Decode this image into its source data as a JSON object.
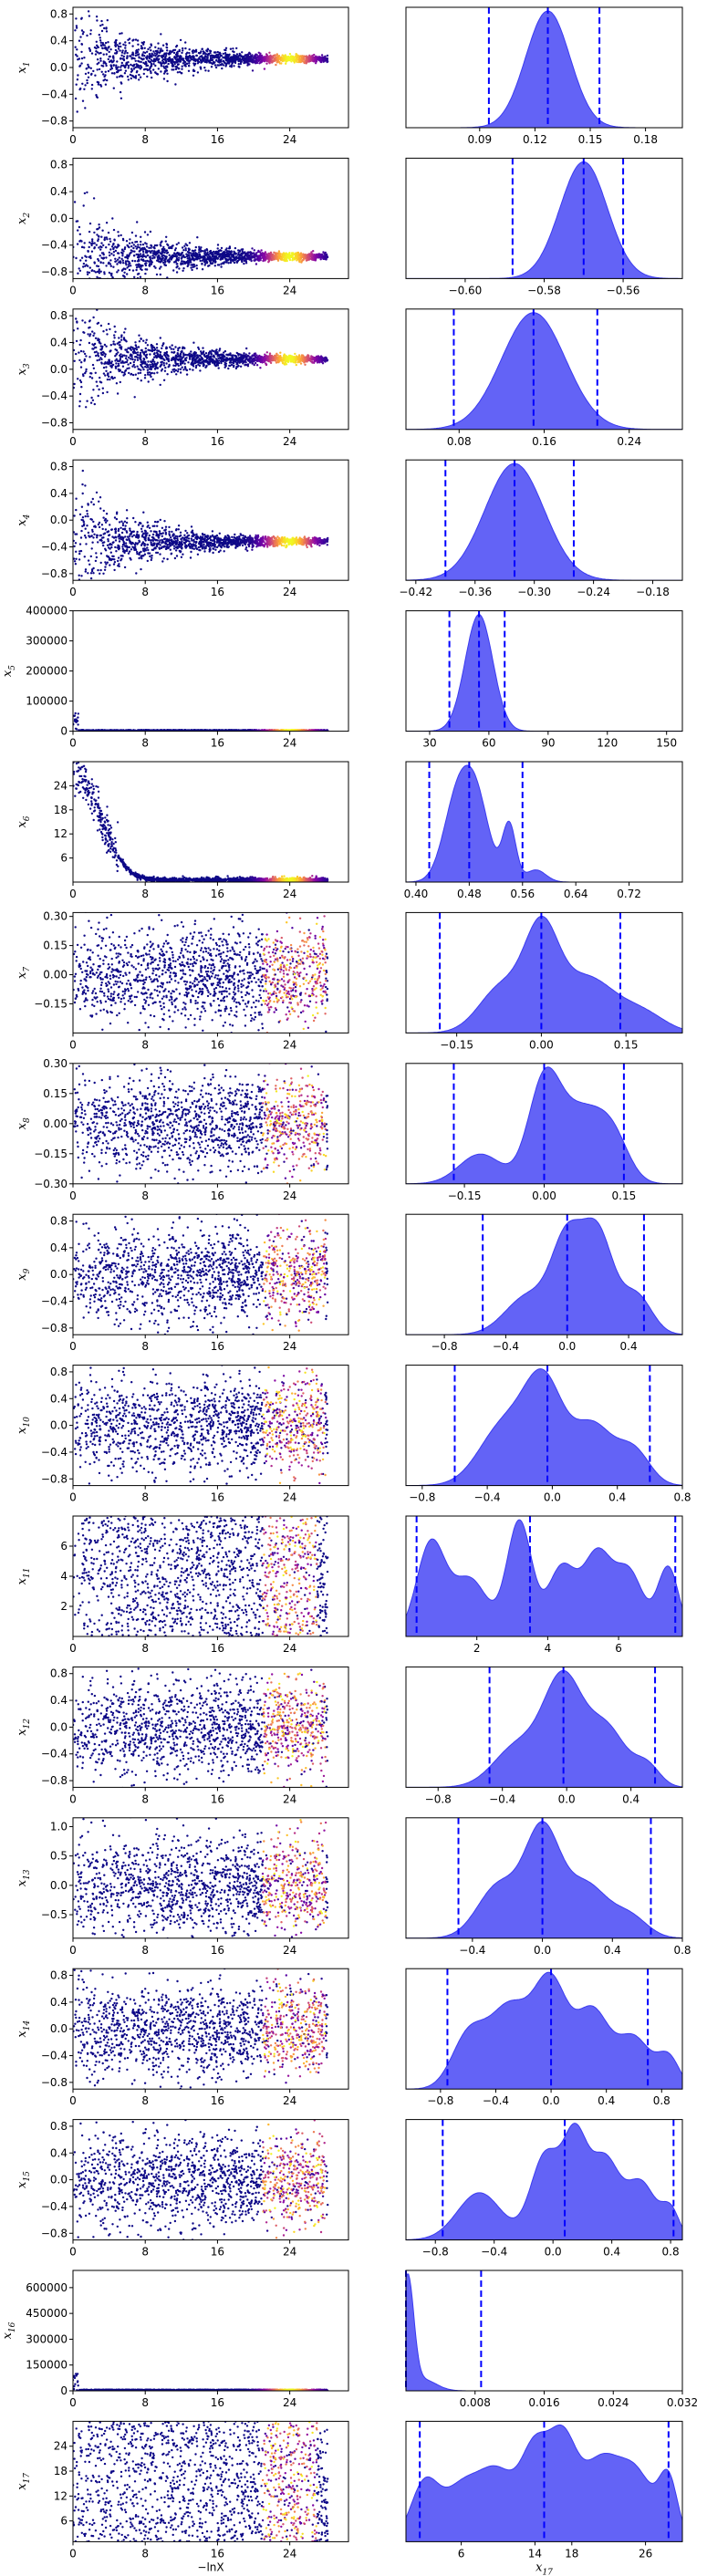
{
  "chart_data": {
    "type": "scatter",
    "description_layout": "17 rows; left column: trace of x_i vs -lnX colored by weight; right column: marginal posterior density with 3 dashed quantile lines",
    "colors": {
      "scatter_low": "#0d0887",
      "scatter_high": "#f0f921",
      "density_fill": "#4848f4",
      "density_edge": "#3b3bf0",
      "quantile_line": "#0000ff"
    },
    "trace_x": {
      "range": [
        0,
        30.5
      ],
      "ticks": [
        0,
        8,
        16,
        24
      ]
    },
    "bottom_xlabels": {
      "trace": "−lnX",
      "last_density": "x",
      "last_density_sub": "17"
    },
    "rows": [
      {
        "label": "x",
        "sub": "1",
        "trace_type": "converge",
        "trace_ylim": [
          -0.9,
          0.9
        ],
        "trace_yticks": [
          -0.8,
          -0.4,
          0.0,
          0.4,
          0.8
        ],
        "trace_yticklabels": [
          "−0.8",
          "−0.4",
          "0.0",
          "0.4",
          "0.8"
        ],
        "final": 0.13,
        "dens_xlim": [
          0.05,
          0.2
        ],
        "dens_xticks": [
          0.09,
          0.12,
          0.15,
          0.18
        ],
        "dens_xticklabels": [
          "0.09",
          "0.12",
          "0.15",
          "0.18"
        ],
        "quantiles": [
          0.095,
          0.127,
          0.155
        ],
        "peaks": [
          [
            0.127,
            0.012,
            1.0
          ]
        ]
      },
      {
        "label": "x",
        "sub": "2",
        "trace_type": "converge",
        "trace_ylim": [
          -0.9,
          0.9
        ],
        "trace_yticks": [
          -0.8,
          -0.4,
          0.0,
          0.4,
          0.8
        ],
        "trace_yticklabels": [
          "−0.8",
          "−0.4",
          "0.0",
          "0.4",
          "0.8"
        ],
        "final": -0.57,
        "dens_xlim": [
          -0.615,
          -0.545
        ],
        "dens_xticks": [
          -0.6,
          -0.58,
          -0.56
        ],
        "dens_xticklabels": [
          "−0.60",
          "−0.58",
          "−0.56"
        ],
        "quantiles": [
          -0.588,
          -0.57,
          -0.56
        ],
        "peaks": [
          [
            -0.57,
            0.006,
            1.0
          ]
        ]
      },
      {
        "label": "x",
        "sub": "3",
        "trace_type": "converge",
        "trace_ylim": [
          -0.9,
          0.9
        ],
        "trace_yticks": [
          -0.8,
          -0.4,
          0.0,
          0.4,
          0.8
        ],
        "trace_yticklabels": [
          "−0.8",
          "−0.4",
          "0.0",
          "0.4",
          "0.8"
        ],
        "final": 0.15,
        "dens_xlim": [
          0.03,
          0.29
        ],
        "dens_xticks": [
          0.08,
          0.16,
          0.24
        ],
        "dens_xticklabels": [
          "0.08",
          "0.16",
          "0.24"
        ],
        "quantiles": [
          0.075,
          0.15,
          0.21
        ],
        "peaks": [
          [
            0.15,
            0.03,
            1.0
          ]
        ]
      },
      {
        "label": "x",
        "sub": "4",
        "trace_type": "converge",
        "trace_ylim": [
          -0.9,
          0.9
        ],
        "trace_yticks": [
          -0.8,
          -0.4,
          0.0,
          0.4,
          0.8
        ],
        "trace_yticklabels": [
          "−0.8",
          "−0.4",
          "0.0",
          "0.4",
          "0.8"
        ],
        "final": -0.32,
        "dens_xlim": [
          -0.43,
          -0.15
        ],
        "dens_xticks": [
          -0.42,
          -0.36,
          -0.3,
          -0.24,
          -0.18
        ],
        "dens_xticklabels": [
          "−0.42",
          "−0.36",
          "−0.30",
          "−0.24",
          "−0.18"
        ],
        "quantiles": [
          -0.39,
          -0.32,
          -0.26
        ],
        "peaks": [
          [
            -0.32,
            0.03,
            1.0
          ]
        ]
      },
      {
        "label": "x",
        "sub": "5",
        "trace_type": "spike",
        "trace_ylim": [
          0,
          400000
        ],
        "trace_yticks": [
          0,
          100000,
          200000,
          300000,
          400000
        ],
        "trace_yticklabels": [
          "0",
          "100000",
          "200000",
          "300000",
          "400000"
        ],
        "final": 0,
        "dens_xlim": [
          18,
          158
        ],
        "dens_xticks": [
          30,
          60,
          90,
          120,
          150
        ],
        "dens_xticklabels": [
          "30",
          "60",
          "90",
          "120",
          "150"
        ],
        "quantiles": [
          40,
          55,
          68
        ],
        "peaks": [
          [
            55,
            7,
            1.0
          ]
        ]
      },
      {
        "label": "x",
        "sub": "6",
        "trace_type": "decay",
        "trace_ylim": [
          0,
          30
        ],
        "trace_yticks": [
          6,
          12,
          18,
          24
        ],
        "trace_yticklabels": [
          "6",
          "12",
          "18",
          "24"
        ],
        "final": 0.5,
        "dens_xlim": [
          0.385,
          0.8
        ],
        "dens_xticks": [
          0.4,
          0.48,
          0.56,
          0.64,
          0.72
        ],
        "dens_xticklabels": [
          "0.40",
          "0.48",
          "0.56",
          "0.64",
          "0.72"
        ],
        "quantiles": [
          0.42,
          0.48,
          0.56
        ],
        "peaks": [
          [
            0.46,
            0.02,
            0.9
          ],
          [
            0.49,
            0.02,
            1.0
          ],
          [
            0.54,
            0.01,
            0.7
          ],
          [
            0.58,
            0.015,
            0.15
          ]
        ]
      },
      {
        "label": "x",
        "sub": "7",
        "trace_type": "flat",
        "trace_ylim": [
          -0.3,
          0.32
        ],
        "trace_yticks": [
          -0.15,
          0.0,
          0.15,
          0.3
        ],
        "trace_yticklabels": [
          "−0.15",
          "0.00",
          "0.15",
          "0.30"
        ],
        "final": 0,
        "dens_xlim": [
          -0.24,
          0.25
        ],
        "dens_xticks": [
          -0.15,
          0.0,
          0.15
        ],
        "dens_xticklabels": [
          "−0.15",
          "0.00",
          "0.15"
        ],
        "quantiles": [
          -0.18,
          0.0,
          0.14
        ],
        "peaks": [
          [
            -0.07,
            0.04,
            0.5
          ],
          [
            0.0,
            0.03,
            1.0
          ],
          [
            0.08,
            0.05,
            0.6
          ],
          [
            0.18,
            0.04,
            0.2
          ]
        ]
      },
      {
        "label": "x",
        "sub": "8",
        "trace_type": "flat",
        "trace_ylim": [
          -0.3,
          0.3
        ],
        "trace_yticks": [
          -0.3,
          -0.15,
          0.0,
          0.15,
          0.3
        ],
        "trace_yticklabels": [
          "−0.30",
          "−0.15",
          "0.00",
          "0.15",
          "0.30"
        ],
        "final": 0,
        "dens_xlim": [
          -0.26,
          0.26
        ],
        "dens_xticks": [
          -0.15,
          0.0,
          0.15
        ],
        "dens_xticklabels": [
          "−0.15",
          "0.00",
          "0.15"
        ],
        "quantiles": [
          -0.17,
          0.0,
          0.15
        ],
        "peaks": [
          [
            -0.12,
            0.04,
            0.3
          ],
          [
            0.0,
            0.03,
            1.0
          ],
          [
            0.07,
            0.04,
            0.7
          ],
          [
            0.13,
            0.03,
            0.4
          ]
        ]
      },
      {
        "label": "x",
        "sub": "9",
        "trace_type": "flat",
        "trace_ylim": [
          -0.9,
          0.9
        ],
        "trace_yticks": [
          -0.8,
          -0.4,
          0.0,
          0.4,
          0.8
        ],
        "trace_yticklabels": [
          "−0.8",
          "−0.4",
          "0.0",
          "0.4",
          "0.8"
        ],
        "final": 0,
        "dens_xlim": [
          -1.05,
          0.75
        ],
        "dens_xticks": [
          -0.8,
          -0.4,
          0.0,
          0.4
        ],
        "dens_xticklabels": [
          "−0.8",
          "−0.4",
          "0.0",
          "0.4"
        ],
        "quantiles": [
          -0.55,
          0.0,
          0.5
        ],
        "peaks": [
          [
            -0.25,
            0.15,
            0.4
          ],
          [
            0.0,
            0.1,
            0.9
          ],
          [
            0.2,
            0.1,
            1.0
          ],
          [
            0.45,
            0.1,
            0.4
          ]
        ]
      },
      {
        "label": "x",
        "sub": "10",
        "trace_type": "flat",
        "trace_ylim": [
          -0.9,
          0.9
        ],
        "trace_yticks": [
          -0.8,
          -0.4,
          0.0,
          0.4,
          0.8
        ],
        "trace_yticklabels": [
          "−0.8",
          "−0.4",
          "0.0",
          "0.4",
          "0.8"
        ],
        "final": 0,
        "dens_xlim": [
          -0.9,
          0.8
        ],
        "dens_xticks": [
          -0.8,
          -0.4,
          0.0,
          0.4,
          0.8
        ],
        "dens_xticklabels": [
          "−0.8",
          "−0.4",
          "0.0",
          "0.4",
          "0.8"
        ],
        "quantiles": [
          -0.6,
          -0.03,
          0.6
        ],
        "peaks": [
          [
            -0.3,
            0.15,
            0.6
          ],
          [
            -0.05,
            0.12,
            1.0
          ],
          [
            0.25,
            0.12,
            0.6
          ],
          [
            0.5,
            0.1,
            0.35
          ]
        ]
      },
      {
        "label": "x",
        "sub": "11",
        "trace_type": "uniform",
        "trace_ylim": [
          0,
          8
        ],
        "trace_yticks": [
          2,
          4,
          6
        ],
        "trace_yticklabels": [
          "2",
          "4",
          "6"
        ],
        "final": 4,
        "dens_xlim": [
          0,
          7.8
        ],
        "dens_xticks": [
          2,
          4,
          6
        ],
        "dens_xticklabels": [
          "2",
          "4",
          "6"
        ],
        "quantiles": [
          0.3,
          3.5,
          7.6
        ],
        "peaks": [
          [
            0.7,
            0.4,
            0.8
          ],
          [
            1.8,
            0.5,
            0.5
          ],
          [
            3.2,
            0.35,
            1.0
          ],
          [
            4.4,
            0.4,
            0.6
          ],
          [
            5.4,
            0.4,
            0.7
          ],
          [
            6.3,
            0.4,
            0.55
          ],
          [
            7.4,
            0.3,
            0.6
          ]
        ]
      },
      {
        "label": "x",
        "sub": "12",
        "trace_type": "flat",
        "trace_ylim": [
          -0.9,
          0.9
        ],
        "trace_yticks": [
          -0.8,
          -0.4,
          0.0,
          0.4,
          0.8
        ],
        "trace_yticklabels": [
          "−0.8",
          "−0.4",
          "0.0",
          "0.4",
          "0.8"
        ],
        "final": 0,
        "dens_xlim": [
          -1.0,
          0.72
        ],
        "dens_xticks": [
          -0.8,
          -0.4,
          0.0,
          0.4
        ],
        "dens_xticklabels": [
          "−0.8",
          "−0.4",
          "0.0",
          "0.4"
        ],
        "quantiles": [
          -0.48,
          -0.02,
          0.55
        ],
        "peaks": [
          [
            -0.3,
            0.15,
            0.4
          ],
          [
            -0.02,
            0.12,
            1.0
          ],
          [
            0.25,
            0.12,
            0.55
          ],
          [
            0.5,
            0.08,
            0.2
          ]
        ]
      },
      {
        "label": "x",
        "sub": "13",
        "trace_type": "flat",
        "trace_ylim": [
          -0.9,
          1.15
        ],
        "trace_yticks": [
          -0.5,
          0.0,
          0.5,
          1.0
        ],
        "trace_yticklabels": [
          "−0.5",
          "0.0",
          "0.5",
          "1.0"
        ],
        "final": 0,
        "dens_xlim": [
          -0.78,
          0.8
        ],
        "dens_xticks": [
          -0.4,
          0.0,
          0.4,
          0.8
        ],
        "dens_xticklabels": [
          "−0.4",
          "0.0",
          "0.4",
          "0.8"
        ],
        "quantiles": [
          -0.48,
          0.0,
          0.62
        ],
        "peaks": [
          [
            -0.25,
            0.12,
            0.5
          ],
          [
            0.0,
            0.1,
            1.0
          ],
          [
            0.25,
            0.12,
            0.5
          ],
          [
            0.5,
            0.1,
            0.2
          ]
        ]
      },
      {
        "label": "x",
        "sub": "14",
        "trace_type": "flat",
        "trace_ylim": [
          -0.9,
          0.9
        ],
        "trace_yticks": [
          -0.8,
          -0.4,
          0.0,
          0.4,
          0.8
        ],
        "trace_yticklabels": [
          "−0.8",
          "−0.4",
          "0.0",
          "0.4",
          "0.8"
        ],
        "final": 0,
        "dens_xlim": [
          -1.05,
          0.95
        ],
        "dens_xticks": [
          -0.8,
          -0.4,
          0.0,
          0.4,
          0.8
        ],
        "dens_xticklabels": [
          "−0.8",
          "−0.4",
          "0.0",
          "0.4",
          "0.8"
        ],
        "quantiles": [
          -0.75,
          0.0,
          0.7
        ],
        "peaks": [
          [
            -0.6,
            0.12,
            0.5
          ],
          [
            -0.3,
            0.15,
            0.8
          ],
          [
            0.0,
            0.12,
            1.0
          ],
          [
            0.3,
            0.12,
            0.75
          ],
          [
            0.6,
            0.12,
            0.5
          ],
          [
            0.85,
            0.08,
            0.3
          ]
        ]
      },
      {
        "label": "x",
        "sub": "15",
        "trace_type": "flat",
        "trace_ylim": [
          -0.9,
          0.9
        ],
        "trace_yticks": [
          -0.8,
          -0.4,
          0.0,
          0.4,
          0.8
        ],
        "trace_yticklabels": [
          "−0.8",
          "−0.4",
          "0.0",
          "0.4",
          "0.8"
        ],
        "final": 0,
        "dens_xlim": [
          -1.0,
          0.88
        ],
        "dens_xticks": [
          -0.8,
          -0.4,
          0.0,
          0.4,
          0.8
        ],
        "dens_xticklabels": [
          "−0.8",
          "−0.4",
          "0.0",
          "0.4",
          "0.8"
        ],
        "quantiles": [
          -0.75,
          0.08,
          0.82
        ],
        "peaks": [
          [
            -0.5,
            0.15,
            0.5
          ],
          [
            -0.05,
            0.1,
            0.9
          ],
          [
            0.15,
            0.08,
            1.0
          ],
          [
            0.35,
            0.1,
            0.85
          ],
          [
            0.6,
            0.1,
            0.6
          ],
          [
            0.8,
            0.06,
            0.3
          ]
        ]
      },
      {
        "label": "x",
        "sub": "16",
        "trace_type": "spike",
        "trace_ylim": [
          0,
          700000
        ],
        "trace_yticks": [
          0,
          150000,
          300000,
          450000,
          600000
        ],
        "trace_yticklabels": [
          "0",
          "150000",
          "300000",
          "450000",
          "600000"
        ],
        "final": 0,
        "dens_xlim": [
          0,
          0.032
        ],
        "dens_xticks": [
          0.008,
          0.016,
          0.024,
          0.032
        ],
        "dens_xticklabels": [
          "0.008",
          "0.016",
          "0.024",
          "0.032"
        ],
        "quantiles": [
          0.0,
          0.0,
          0.0087
        ],
        "peaks": [
          [
            0.0002,
            0.0007,
            1.0
          ],
          [
            0.002,
            0.0015,
            0.1
          ]
        ]
      },
      {
        "label": "x",
        "sub": "17",
        "trace_type": "uniform",
        "trace_ylim": [
          1,
          30
        ],
        "trace_yticks": [
          6,
          12,
          18,
          24
        ],
        "trace_yticklabels": [
          "6",
          "12",
          "18",
          "24"
        ],
        "final": 15,
        "dens_xlim": [
          0,
          30
        ],
        "dens_xticks": [
          6,
          14,
          18,
          26
        ],
        "dens_xticklabels": [
          "6",
          "14",
          "18",
          "26"
        ],
        "quantiles": [
          1.5,
          15,
          28.5
        ],
        "peaks": [
          [
            2,
            1.5,
            0.6
          ],
          [
            6,
            2,
            0.55
          ],
          [
            10,
            2,
            0.7
          ],
          [
            14,
            1.5,
            0.9
          ],
          [
            17,
            1.5,
            1.0
          ],
          [
            21,
            2,
            0.8
          ],
          [
            25,
            2,
            0.7
          ],
          [
            28.5,
            1,
            0.6
          ]
        ]
      }
    ]
  }
}
